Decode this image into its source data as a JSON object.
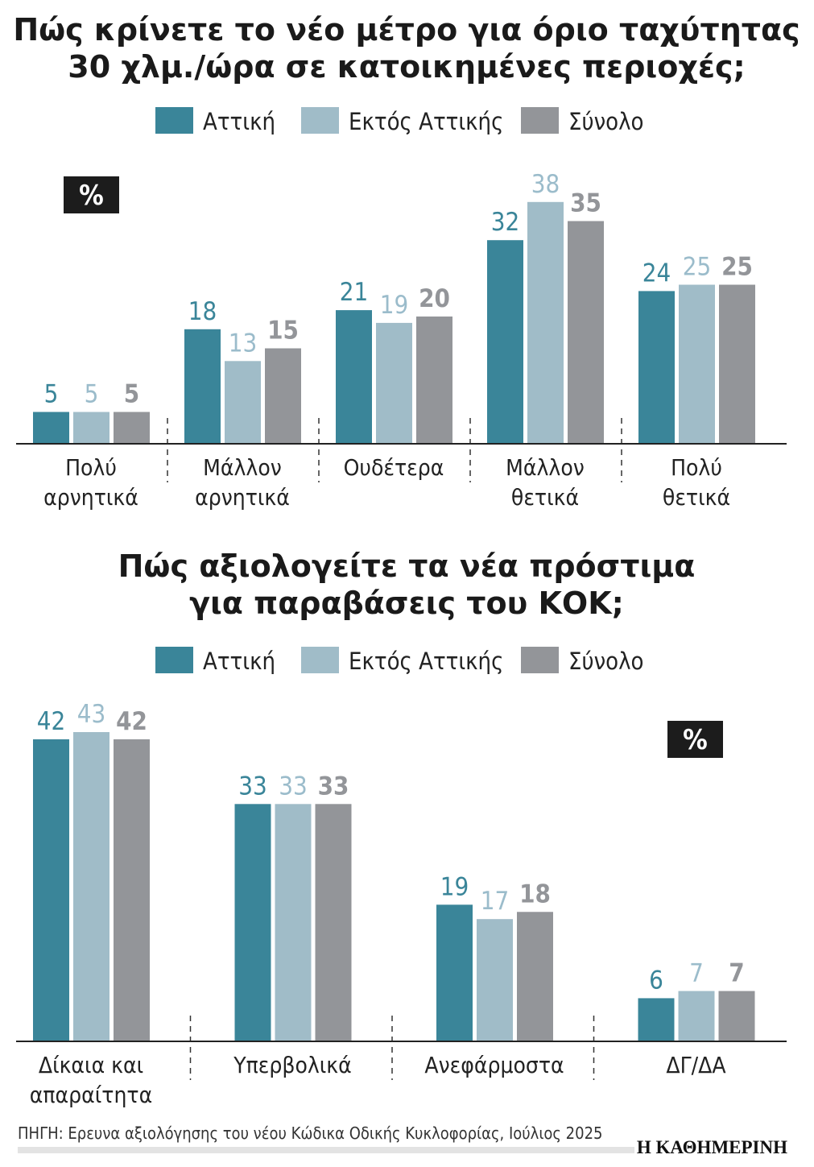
{
  "colors": {
    "attiki": "#3a8599",
    "ektos": "#a0bcc8",
    "synolo": "#939599",
    "axis": "#222222"
  },
  "logo": "Η ΚΑΘΗΜΕΡΙΝΗ",
  "source": "ΠΗΓΗ: Ερευνα αξιολόγησης του νέου Κώδικα Οδικής Κυκλοφορίας, Ιούλιος 2025",
  "chart_data": [
    {
      "type": "bar",
      "title": [
        "Πώς κρίνετε το νέο μέτρο για όριο ταχύτητας",
        "30 χλμ./ώρα σε κατοικημένες περιοχές;"
      ],
      "unit_badge": "%",
      "categories": [
        [
          "Πολύ",
          "αρνητικά"
        ],
        [
          "Μάλλον",
          "αρνητικά"
        ],
        [
          "Ουδέτερα"
        ],
        [
          "Μάλλον",
          "θετικά"
        ],
        [
          "Πολύ",
          "θετικά"
        ]
      ],
      "series": [
        {
          "name": "Αττική",
          "values": [
            5,
            18,
            21,
            32,
            24
          ]
        },
        {
          "name": "Εκτός Αττικής",
          "values": [
            5,
            13,
            19,
            38,
            25
          ]
        },
        {
          "name": "Σύνολο",
          "values": [
            5,
            15,
            20,
            35,
            25
          ]
        }
      ],
      "legend": "top-center",
      "grid": false
    },
    {
      "type": "bar",
      "title": [
        "Πώς αξιολογείτε τα νέα πρόστιμα",
        "για παραβάσεις του ΚΟΚ;"
      ],
      "unit_badge": "%",
      "categories": [
        [
          "Δίκαια και",
          "απαραίτητα"
        ],
        [
          "Υπερβολικά"
        ],
        [
          "Ανεφάρμοστα"
        ],
        [
          "ΔΓ/ΔΑ"
        ]
      ],
      "series": [
        {
          "name": "Αττική",
          "values": [
            42,
            33,
            19,
            6
          ]
        },
        {
          "name": "Εκτός Αττικής",
          "values": [
            43,
            33,
            17,
            7
          ]
        },
        {
          "name": "Σύνολο",
          "values": [
            42,
            33,
            18,
            7
          ]
        }
      ],
      "legend": "top-center",
      "grid": false
    }
  ]
}
